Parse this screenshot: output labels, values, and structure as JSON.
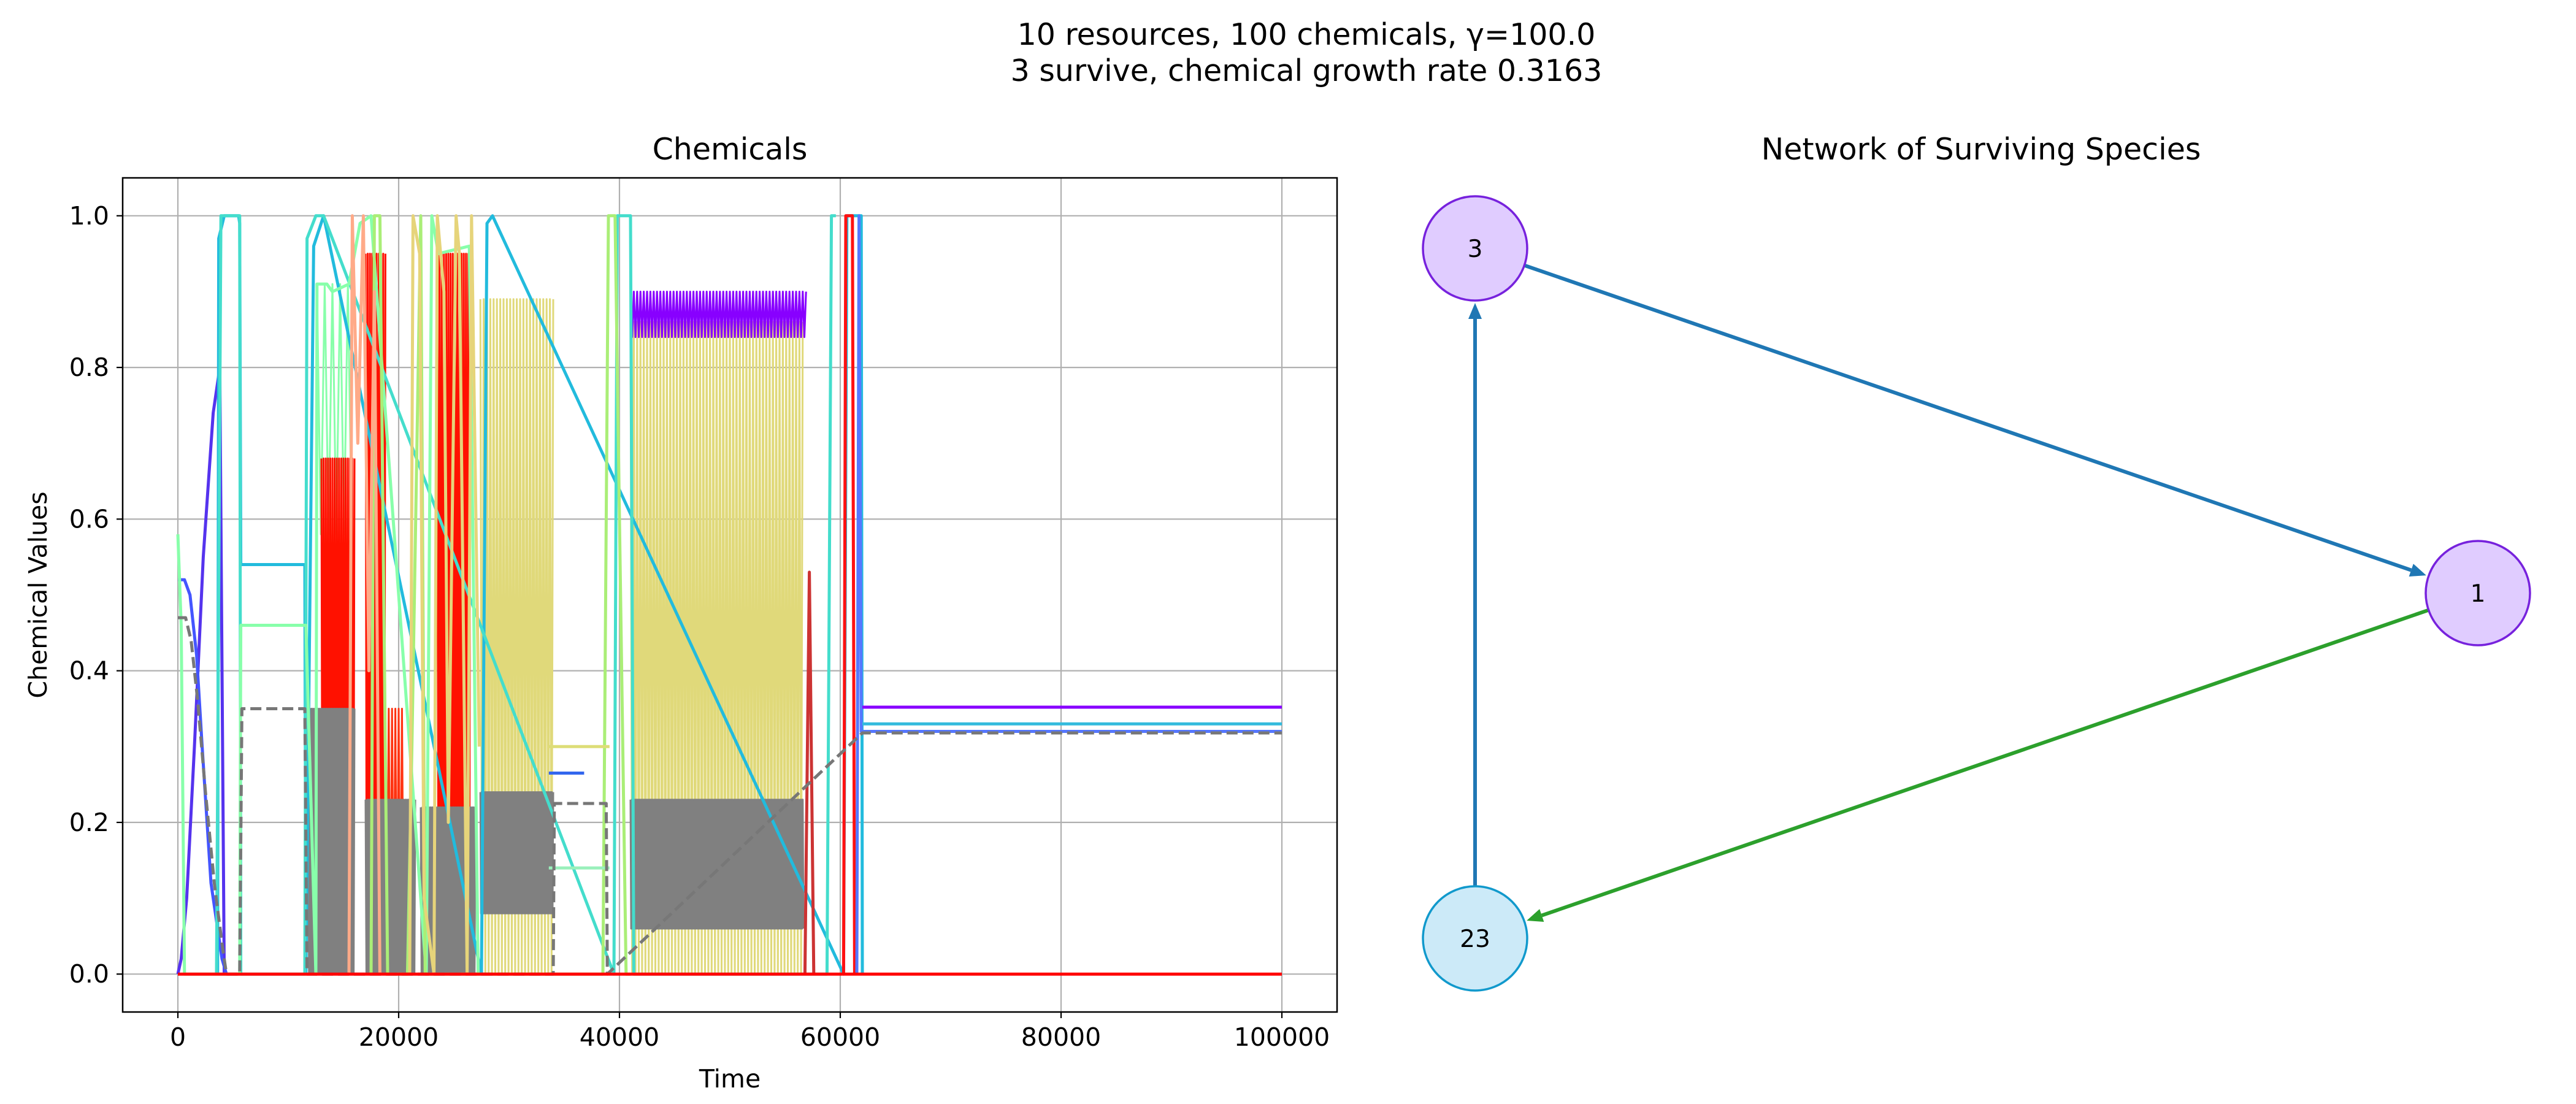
{
  "figure": {
    "title_line1": "10 resources, 100 chemicals, γ=100.0",
    "title_line2": "3 survive, chemical growth rate 0.3163"
  },
  "chart_data": [
    {
      "type": "line",
      "title": "Chemicals",
      "xlabel": "Time",
      "ylabel": "Chemical Values",
      "xlim": [
        -5000,
        105000
      ],
      "ylim": [
        -0.05,
        1.05
      ],
      "xticks": [
        0,
        20000,
        40000,
        60000,
        80000,
        100000
      ],
      "xtick_labels": [
        "0",
        "20000",
        "40000",
        "60000",
        "80000",
        "100000"
      ],
      "yticks": [
        0.0,
        0.2,
        0.4,
        0.6,
        0.8,
        1.0
      ],
      "ytick_labels": [
        "0.0",
        "0.2",
        "0.4",
        "0.6",
        "0.8",
        "1.0"
      ],
      "grid": true,
      "series": [
        {
          "color": "#5533ee",
          "x": [
            0,
            300,
            800,
            1500,
            2300,
            3200,
            3800,
            4200
          ],
          "y": [
            0.0,
            0.02,
            0.1,
            0.3,
            0.55,
            0.74,
            0.8,
            0.0
          ]
        },
        {
          "color": "#4455ff",
          "x": [
            0,
            600,
            1100,
            1700,
            2200,
            3000,
            4000,
            4400
          ],
          "y": [
            0.52,
            0.52,
            0.5,
            0.42,
            0.3,
            0.12,
            0.02,
            0.0
          ]
        },
        {
          "color": "#22bbdd",
          "x": [
            3600,
            3700,
            4200,
            4500,
            5500,
            5600,
            5700,
            11500,
            11600,
            12300,
            13200,
            27500,
            28000,
            28500,
            60300,
            60600,
            61900,
            62000
          ],
          "y": [
            0.0,
            0.97,
            1.0,
            1.0,
            1.0,
            0.99,
            0.54,
            0.54,
            0.0,
            0.96,
            1.0,
            0.0,
            0.99,
            1.0,
            0.0,
            1.0,
            1.0,
            0.0
          ]
        },
        {
          "color": "#44ddcc",
          "x": [
            3500,
            3900,
            4400,
            5600,
            5700,
            11500,
            11700,
            12500,
            13200,
            39500,
            39800,
            40200,
            41000,
            41300,
            58800,
            59200,
            59600
          ],
          "y": [
            0.0,
            1.0,
            1.0,
            1.0,
            0.0,
            0.0,
            0.97,
            1.0,
            1.0,
            0.0,
            1.0,
            1.0,
            1.0,
            0.0,
            0.0,
            1.0,
            1.0
          ]
        },
        {
          "color": "#88ffaa",
          "x": [
            0,
            300,
            600,
            5600,
            5700,
            11600,
            12500,
            12600,
            13500,
            14000,
            15500,
            16500,
            17500,
            22500,
            23000,
            23600,
            26400,
            27200
          ],
          "y": [
            0.58,
            0.46,
            0.0,
            0.0,
            0.46,
            0.46,
            0.0,
            0.91,
            0.91,
            0.9,
            0.91,
            0.99,
            1.0,
            0.0,
            1.0,
            0.95,
            0.96,
            0.0
          ]
        },
        {
          "color": "#aaee77",
          "x": [
            17500,
            17800,
            18300,
            19000,
            20800,
            21200,
            22000,
            22400,
            38500,
            39000,
            39600,
            40600,
            41000
          ],
          "y": [
            0.0,
            1.0,
            1.0,
            0.0,
            0.0,
            0.3,
            1.0,
            0.0,
            0.0,
            1.0,
            1.0,
            0.0,
            0.0
          ]
        },
        {
          "color": "#ffaa88",
          "x": [
            15500,
            15800,
            16300,
            16800,
            17300,
            17800,
            18300
          ],
          "y": [
            0.0,
            1.0,
            0.7,
            1.0,
            0.4,
            0.9,
            0.0
          ]
        },
        {
          "color": "#e6d47a",
          "x": [
            21000,
            21300,
            21900,
            22300,
            23200,
            23500,
            24100,
            24500,
            25200,
            25500,
            26200,
            26600,
            27300
          ],
          "y": [
            0.0,
            1.0,
            0.95,
            0.1,
            0.0,
            1.0,
            0.9,
            0.2,
            1.0,
            0.95,
            0.0,
            1.0,
            0.3
          ]
        },
        {
          "color": "#dddd77",
          "x": [
            33600,
            33700,
            39100
          ],
          "y": [
            0.3,
            0.3,
            0.3
          ]
        },
        {
          "color": "#99f0bb",
          "x": [
            33600,
            33700,
            39100
          ],
          "y": [
            0.14,
            0.14,
            0.14
          ]
        },
        {
          "color": "#3366ee",
          "x": [
            33600,
            33700,
            36800
          ],
          "y": [
            0.265,
            0.265,
            0.265
          ]
        },
        {
          "color": "#cc3333",
          "x": [
            56800,
            57200,
            57600
          ],
          "y": [
            0.0,
            0.53,
            0.0
          ]
        },
        {
          "color": "#ff1111",
          "x": [
            60300,
            60500,
            61100,
            61300
          ],
          "y": [
            0.0,
            1.0,
            1.0,
            0.0
          ]
        },
        {
          "color": "#5577ff",
          "x": [
            61500,
            61700,
            61900,
            100000
          ],
          "y": [
            0.0,
            1.0,
            0.32,
            0.32
          ]
        },
        {
          "color": "#33bbdd",
          "x": [
            62000,
            100000
          ],
          "y": [
            0.33,
            0.33
          ]
        },
        {
          "color": "#8800ff",
          "x": [
            62000,
            100000
          ],
          "y": [
            0.352,
            0.352
          ]
        },
        {
          "color": "#777777",
          "dashed": true,
          "x": [
            0,
            700,
            1200,
            1800,
            2500,
            3300,
            4000,
            4400,
            5600,
            5800,
            11500,
            11700,
            34000,
            34100,
            38800,
            38900,
            62000,
            100000
          ],
          "y": [
            0.47,
            0.47,
            0.44,
            0.36,
            0.24,
            0.12,
            0.04,
            0.0,
            0.0,
            0.35,
            0.35,
            0.0,
            0.0,
            0.225,
            0.225,
            0.0,
            0.318,
            0.318
          ]
        },
        {
          "color": "#ff0000",
          "x": [
            0,
            100000
          ],
          "y": [
            0.0,
            0.0
          ]
        }
      ],
      "bands": [
        {
          "color": "#88ffaa",
          "x0": 12600,
          "x1": 16000,
          "ylo": 0.58,
          "yhi": 0.91,
          "period": 700
        },
        {
          "color": "#e0d97a",
          "x0": 27400,
          "x1": 34000,
          "ylo": 0.0,
          "yhi": 0.89,
          "period": 300
        },
        {
          "color": "#e0d97a",
          "x0": 41000,
          "x1": 56700,
          "ylo": 0.0,
          "yhi": 0.86,
          "period": 300
        },
        {
          "color": "#8800ff",
          "x0": 41000,
          "x1": 57000,
          "ylo": 0.84,
          "yhi": 0.9,
          "period": 300
        },
        {
          "color": "#ff1100",
          "x0": 13000,
          "x1": 16000,
          "ylo": 0.0,
          "yhi": 0.68,
          "period": 200
        },
        {
          "color": "#ff1100",
          "x0": 17000,
          "x1": 18800,
          "ylo": 0.0,
          "yhi": 0.95,
          "period": 200
        },
        {
          "color": "#ff3311",
          "x0": 18800,
          "x1": 20500,
          "ylo": 0.02,
          "yhi": 0.35,
          "period": 300
        },
        {
          "color": "#ff1100",
          "x0": 23500,
          "x1": 26500,
          "ylo": 0.0,
          "yhi": 0.95,
          "period": 200
        },
        {
          "color": "#808080",
          "x0": 11800,
          "x1": 16000,
          "ylo": 0.0,
          "yhi": 0.35,
          "period": 150
        },
        {
          "color": "#808080",
          "x0": 17000,
          "x1": 21500,
          "ylo": 0.0,
          "yhi": 0.23,
          "period": 150
        },
        {
          "color": "#808080",
          "x0": 22000,
          "x1": 27000,
          "ylo": 0.0,
          "yhi": 0.22,
          "period": 150
        },
        {
          "color": "#808080",
          "x0": 27400,
          "x1": 34000,
          "ylo": 0.08,
          "yhi": 0.24,
          "period": 120
        },
        {
          "color": "#808080",
          "x0": 41000,
          "x1": 56700,
          "ylo": 0.06,
          "yhi": 0.23,
          "period": 120
        }
      ]
    },
    {
      "type": "network",
      "title": "Network of Surviving Species",
      "nodes": [
        {
          "id": "3",
          "label": "3",
          "fill": "#e0ccff",
          "stroke": "#7722dd"
        },
        {
          "id": "1",
          "label": "1",
          "fill": "#e0ccff",
          "stroke": "#7722dd"
        },
        {
          "id": "23",
          "label": "23",
          "fill": "#cceaf8",
          "stroke": "#1199cc"
        }
      ],
      "edges": [
        {
          "from": "3",
          "to": "1",
          "color": "#1f77b4"
        },
        {
          "from": "1",
          "to": "23",
          "color": "#2ca02c"
        },
        {
          "from": "23",
          "to": "3",
          "color": "#1f77b4"
        }
      ]
    }
  ]
}
